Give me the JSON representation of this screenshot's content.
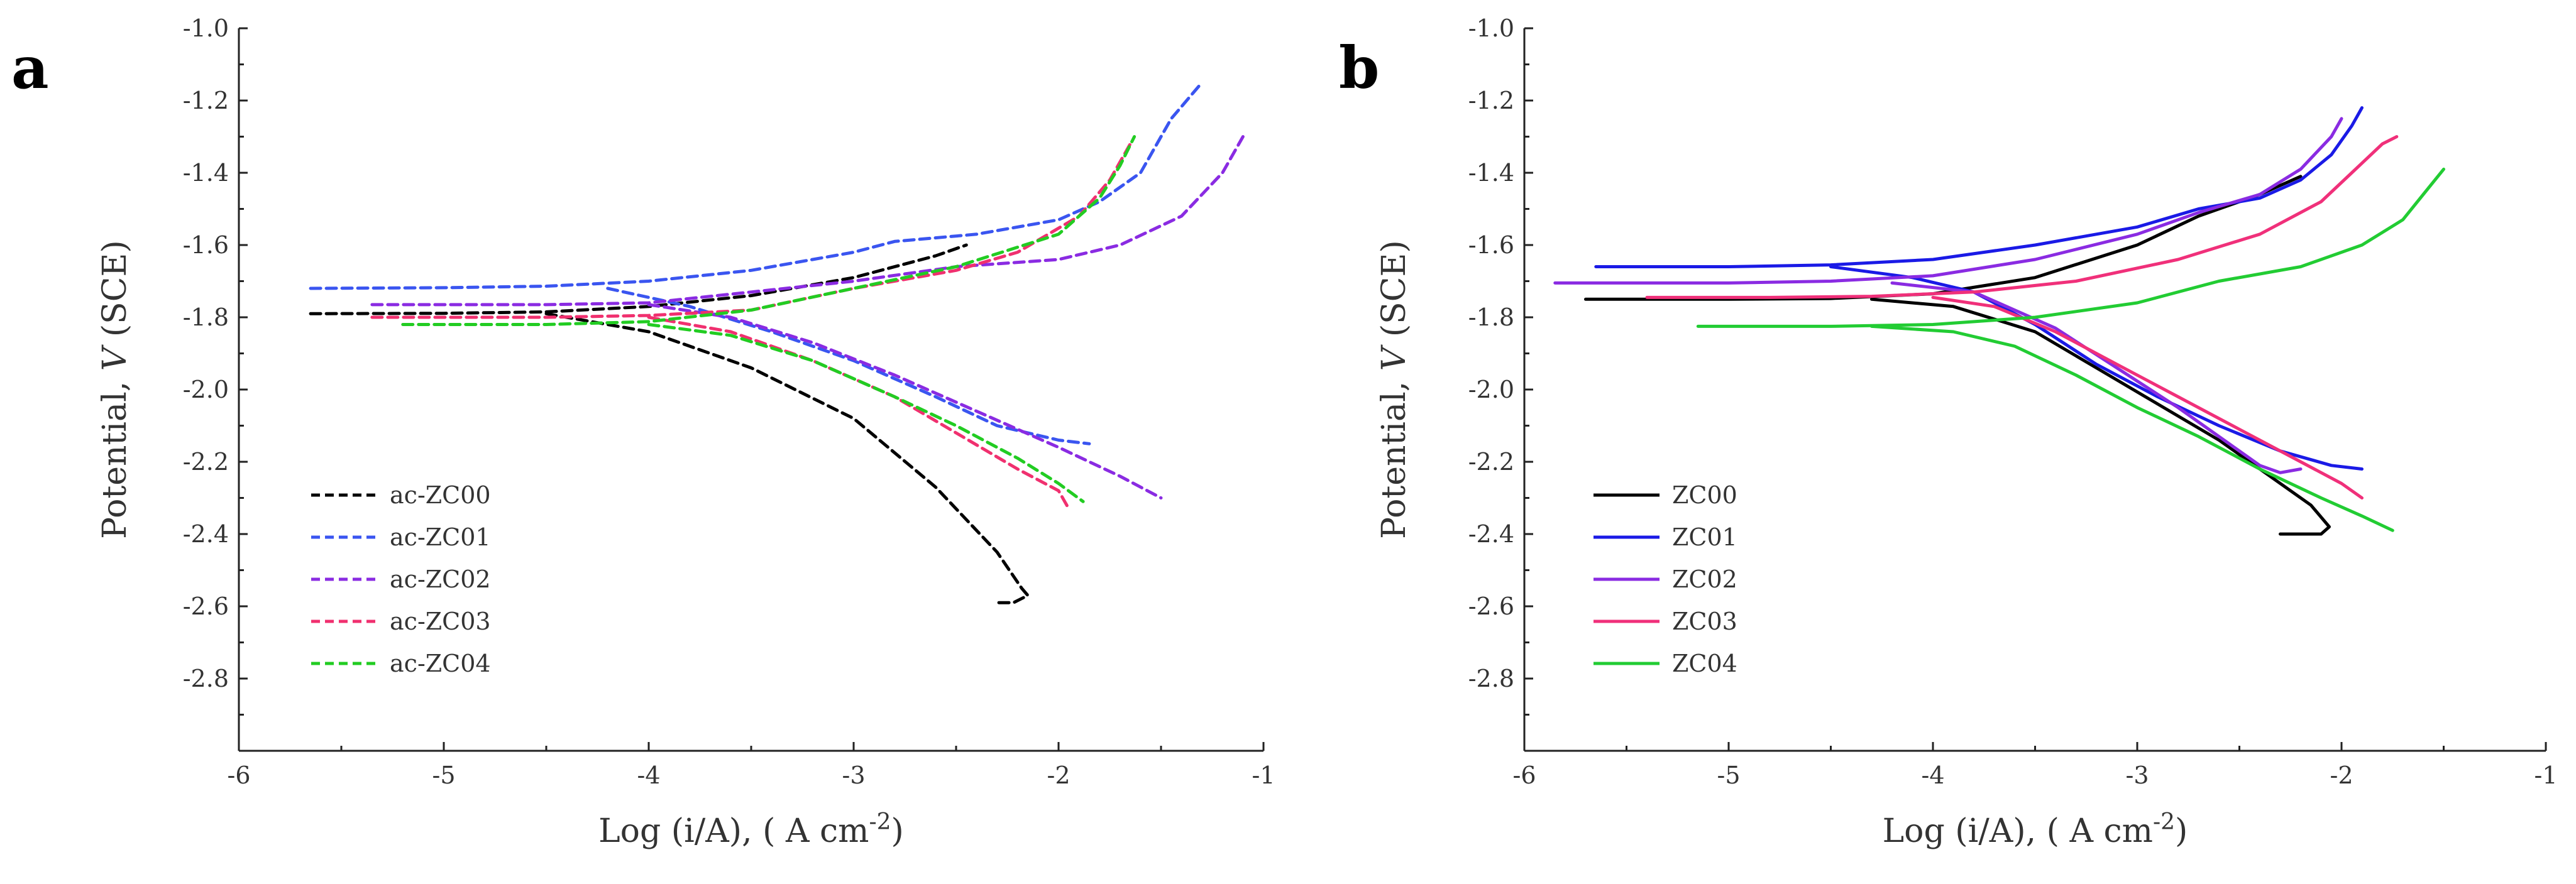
{
  "chart_data": [
    {
      "type": "line",
      "panel_label": "a",
      "xlabel_text": "Log (i/A), ( A cm",
      "xlabel_sup": "-2",
      "xlabel_close": ")",
      "ylabel_prefix": "Potential, ",
      "ylabel_italic": "V",
      "ylabel_suffix": " (SCE)",
      "xlim": [
        -6,
        -1
      ],
      "ylim": [
        -3.0,
        -1.0
      ],
      "xticks": [
        -6,
        -5,
        -4,
        -3,
        -2,
        -1
      ],
      "yticks": [
        -2.8,
        -2.6,
        -2.4,
        -2.2,
        -2.0,
        -1.8,
        -1.6,
        -1.4,
        -1.2,
        -1.0
      ],
      "xtick_labels": [
        "-6",
        "-5",
        "-4",
        "-3",
        "-2",
        "-1"
      ],
      "ytick_labels": [
        "-2.8",
        "-2.6",
        "-2.4",
        "-2.2",
        "-2.0",
        "-1.8",
        "-1.6",
        "-1.4",
        "-1.2",
        "-1.0"
      ],
      "line_style": "dashed",
      "legend_position": "lower-left",
      "series": [
        {
          "name": "ac-ZC00",
          "color": "#000000",
          "anodic": [
            [
              -5.65,
              -1.79
            ],
            [
              -5.0,
              -1.789
            ],
            [
              -4.5,
              -1.785
            ],
            [
              -4.0,
              -1.77
            ],
            [
              -3.5,
              -1.74
            ],
            [
              -3.0,
              -1.69
            ],
            [
              -2.6,
              -1.63
            ],
            [
              -2.45,
              -1.6
            ]
          ],
          "cathodic": [
            [
              -4.5,
              -1.79
            ],
            [
              -4.0,
              -1.84
            ],
            [
              -3.5,
              -1.94
            ],
            [
              -3.0,
              -2.08
            ],
            [
              -2.6,
              -2.27
            ],
            [
              -2.3,
              -2.45
            ],
            [
              -2.18,
              -2.55
            ],
            [
              -2.15,
              -2.57
            ],
            [
              -2.22,
              -2.59
            ],
            [
              -2.3,
              -2.59
            ]
          ]
        },
        {
          "name": "ac-ZC01",
          "color": "#3a55f0",
          "anodic": [
            [
              -5.65,
              -1.72
            ],
            [
              -5.0,
              -1.718
            ],
            [
              -4.5,
              -1.714
            ],
            [
              -4.0,
              -1.7
            ],
            [
              -3.5,
              -1.67
            ],
            [
              -3.0,
              -1.62
            ],
            [
              -2.8,
              -1.59
            ],
            [
              -2.4,
              -1.57
            ],
            [
              -2.0,
              -1.53
            ],
            [
              -1.8,
              -1.48
            ],
            [
              -1.6,
              -1.4
            ],
            [
              -1.45,
              -1.25
            ],
            [
              -1.3,
              -1.15
            ]
          ],
          "cathodic": [
            [
              -4.2,
              -1.72
            ],
            [
              -3.8,
              -1.77
            ],
            [
              -3.4,
              -1.84
            ],
            [
              -3.0,
              -1.92
            ],
            [
              -2.6,
              -2.02
            ],
            [
              -2.3,
              -2.1
            ],
            [
              -2.0,
              -2.14
            ],
            [
              -1.85,
              -2.15
            ]
          ]
        },
        {
          "name": "ac-ZC02",
          "color": "#8a2be2",
          "anodic": [
            [
              -5.35,
              -1.765
            ],
            [
              -4.5,
              -1.765
            ],
            [
              -4.0,
              -1.76
            ],
            [
              -3.5,
              -1.73
            ],
            [
              -3.0,
              -1.7
            ],
            [
              -2.5,
              -1.66
            ],
            [
              -2.0,
              -1.64
            ],
            [
              -1.7,
              -1.6
            ],
            [
              -1.4,
              -1.52
            ],
            [
              -1.2,
              -1.4
            ],
            [
              -1.1,
              -1.3
            ]
          ],
          "cathodic": [
            [
              -4.0,
              -1.765
            ],
            [
              -3.6,
              -1.8
            ],
            [
              -3.2,
              -1.87
            ],
            [
              -2.8,
              -1.96
            ],
            [
              -2.4,
              -2.06
            ],
            [
              -2.0,
              -2.16
            ],
            [
              -1.7,
              -2.24
            ],
            [
              -1.5,
              -2.3
            ]
          ]
        },
        {
          "name": "ac-ZC03",
          "color": "#f0306f",
          "anodic": [
            [
              -5.35,
              -1.8
            ],
            [
              -4.5,
              -1.8
            ],
            [
              -4.0,
              -1.795
            ],
            [
              -3.5,
              -1.78
            ],
            [
              -3.0,
              -1.72
            ],
            [
              -2.5,
              -1.67
            ],
            [
              -2.2,
              -1.62
            ],
            [
              -1.9,
              -1.52
            ],
            [
              -1.75,
              -1.42
            ],
            [
              -1.65,
              -1.32
            ]
          ],
          "cathodic": [
            [
              -4.0,
              -1.8
            ],
            [
              -3.6,
              -1.84
            ],
            [
              -3.2,
              -1.92
            ],
            [
              -2.8,
              -2.02
            ],
            [
              -2.5,
              -2.12
            ],
            [
              -2.2,
              -2.22
            ],
            [
              -2.0,
              -2.28
            ],
            [
              -1.95,
              -2.33
            ]
          ]
        },
        {
          "name": "ac-ZC04",
          "color": "#22cc22",
          "anodic": [
            [
              -5.2,
              -1.82
            ],
            [
              -4.5,
              -1.82
            ],
            [
              -4.0,
              -1.812
            ],
            [
              -3.5,
              -1.78
            ],
            [
              -3.0,
              -1.72
            ],
            [
              -2.5,
              -1.66
            ],
            [
              -2.0,
              -1.57
            ],
            [
              -1.8,
              -1.47
            ],
            [
              -1.7,
              -1.38
            ],
            [
              -1.63,
              -1.3
            ]
          ],
          "cathodic": [
            [
              -4.0,
              -1.82
            ],
            [
              -3.6,
              -1.85
            ],
            [
              -3.2,
              -1.92
            ],
            [
              -2.8,
              -2.02
            ],
            [
              -2.5,
              -2.1
            ],
            [
              -2.2,
              -2.19
            ],
            [
              -2.0,
              -2.26
            ],
            [
              -1.88,
              -2.31
            ]
          ]
        }
      ]
    },
    {
      "type": "line",
      "panel_label": "b",
      "xlabel_text": "Log (i/A), ( A cm",
      "xlabel_sup": "-2",
      "xlabel_close": ")",
      "ylabel_prefix": "Potential, ",
      "ylabel_italic": "V",
      "ylabel_suffix": " (SCE)",
      "xlim": [
        -6,
        -1
      ],
      "ylim": [
        -3.0,
        -1.0
      ],
      "xticks": [
        -6,
        -5,
        -4,
        -3,
        -2,
        -1
      ],
      "yticks": [
        -2.8,
        -2.6,
        -2.4,
        -2.2,
        -2.0,
        -1.8,
        -1.6,
        -1.4,
        -1.2,
        -1.0
      ],
      "xtick_labels": [
        "-6",
        "-5",
        "-4",
        "-3",
        "-2",
        "-1"
      ],
      "ytick_labels": [
        "-2.8",
        "-2.6",
        "-2.4",
        "-2.2",
        "-2.0",
        "-1.8",
        "-1.6",
        "-1.4",
        "-1.2",
        "-1.0"
      ],
      "line_style": "solid",
      "legend_position": "lower-left",
      "series": [
        {
          "name": "ZC00",
          "color": "#000000",
          "anodic": [
            [
              -5.7,
              -1.75
            ],
            [
              -5.0,
              -1.75
            ],
            [
              -4.5,
              -1.748
            ],
            [
              -4.0,
              -1.735
            ],
            [
              -3.5,
              -1.69
            ],
            [
              -3.0,
              -1.6
            ],
            [
              -2.7,
              -1.52
            ],
            [
              -2.4,
              -1.46
            ],
            [
              -2.2,
              -1.41
            ]
          ],
          "cathodic": [
            [
              -4.3,
              -1.75
            ],
            [
              -3.9,
              -1.77
            ],
            [
              -3.5,
              -1.84
            ],
            [
              -3.2,
              -1.94
            ],
            [
              -2.9,
              -2.04
            ],
            [
              -2.6,
              -2.14
            ],
            [
              -2.35,
              -2.24
            ],
            [
              -2.15,
              -2.32
            ],
            [
              -2.06,
              -2.38
            ],
            [
              -2.1,
              -2.4
            ],
            [
              -2.3,
              -2.4
            ]
          ]
        },
        {
          "name": "ZC01",
          "color": "#1a1ae6",
          "anodic": [
            [
              -5.65,
              -1.66
            ],
            [
              -5.0,
              -1.66
            ],
            [
              -4.5,
              -1.655
            ],
            [
              -4.0,
              -1.64
            ],
            [
              -3.5,
              -1.6
            ],
            [
              -3.0,
              -1.55
            ],
            [
              -2.7,
              -1.5
            ],
            [
              -2.4,
              -1.47
            ],
            [
              -2.2,
              -1.42
            ],
            [
              -2.05,
              -1.35
            ],
            [
              -1.95,
              -1.27
            ],
            [
              -1.9,
              -1.22
            ]
          ],
          "cathodic": [
            [
              -4.5,
              -1.66
            ],
            [
              -4.1,
              -1.69
            ],
            [
              -3.8,
              -1.73
            ],
            [
              -3.5,
              -1.82
            ],
            [
              -3.2,
              -1.93
            ],
            [
              -2.9,
              -2.02
            ],
            [
              -2.6,
              -2.1
            ],
            [
              -2.3,
              -2.17
            ],
            [
              -2.05,
              -2.21
            ],
            [
              -1.9,
              -2.22
            ]
          ]
        },
        {
          "name": "ZC02",
          "color": "#8a2be2",
          "anodic": [
            [
              -5.85,
              -1.705
            ],
            [
              -5.0,
              -1.705
            ],
            [
              -4.5,
              -1.7
            ],
            [
              -4.0,
              -1.685
            ],
            [
              -3.5,
              -1.64
            ],
            [
              -3.0,
              -1.57
            ],
            [
              -2.7,
              -1.51
            ],
            [
              -2.4,
              -1.46
            ],
            [
              -2.2,
              -1.39
            ],
            [
              -2.05,
              -1.3
            ],
            [
              -2.0,
              -1.25
            ]
          ],
          "cathodic": [
            [
              -4.2,
              -1.705
            ],
            [
              -3.8,
              -1.73
            ],
            [
              -3.4,
              -1.83
            ],
            [
              -3.1,
              -1.94
            ],
            [
              -2.8,
              -2.05
            ],
            [
              -2.55,
              -2.15
            ],
            [
              -2.4,
              -2.21
            ],
            [
              -2.3,
              -2.23
            ],
            [
              -2.2,
              -2.22
            ]
          ]
        },
        {
          "name": "ZC03",
          "color": "#f0307a",
          "anodic": [
            [
              -5.4,
              -1.745
            ],
            [
              -4.8,
              -1.745
            ],
            [
              -4.3,
              -1.742
            ],
            [
              -3.8,
              -1.73
            ],
            [
              -3.3,
              -1.7
            ],
            [
              -2.8,
              -1.64
            ],
            [
              -2.4,
              -1.57
            ],
            [
              -2.1,
              -1.48
            ],
            [
              -1.95,
              -1.4
            ],
            [
              -1.8,
              -1.32
            ],
            [
              -1.73,
              -1.3
            ]
          ],
          "cathodic": [
            [
              -4.0,
              -1.745
            ],
            [
              -3.7,
              -1.77
            ],
            [
              -3.4,
              -1.84
            ],
            [
              -3.1,
              -1.93
            ],
            [
              -2.8,
              -2.02
            ],
            [
              -2.5,
              -2.11
            ],
            [
              -2.2,
              -2.2
            ],
            [
              -2.0,
              -2.26
            ],
            [
              -1.9,
              -2.3
            ]
          ]
        },
        {
          "name": "ZC04",
          "color": "#22cc33",
          "anodic": [
            [
              -5.15,
              -1.825
            ],
            [
              -4.5,
              -1.825
            ],
            [
              -4.0,
              -1.82
            ],
            [
              -3.5,
              -1.8
            ],
            [
              -3.0,
              -1.76
            ],
            [
              -2.6,
              -1.7
            ],
            [
              -2.2,
              -1.66
            ],
            [
              -1.9,
              -1.6
            ],
            [
              -1.7,
              -1.53
            ],
            [
              -1.6,
              -1.46
            ],
            [
              -1.5,
              -1.39
            ]
          ],
          "cathodic": [
            [
              -4.3,
              -1.825
            ],
            [
              -3.9,
              -1.84
            ],
            [
              -3.6,
              -1.88
            ],
            [
              -3.3,
              -1.96
            ],
            [
              -3.0,
              -2.05
            ],
            [
              -2.7,
              -2.13
            ],
            [
              -2.4,
              -2.22
            ],
            [
              -2.1,
              -2.3
            ],
            [
              -1.9,
              -2.35
            ],
            [
              -1.75,
              -2.39
            ]
          ]
        }
      ]
    }
  ]
}
